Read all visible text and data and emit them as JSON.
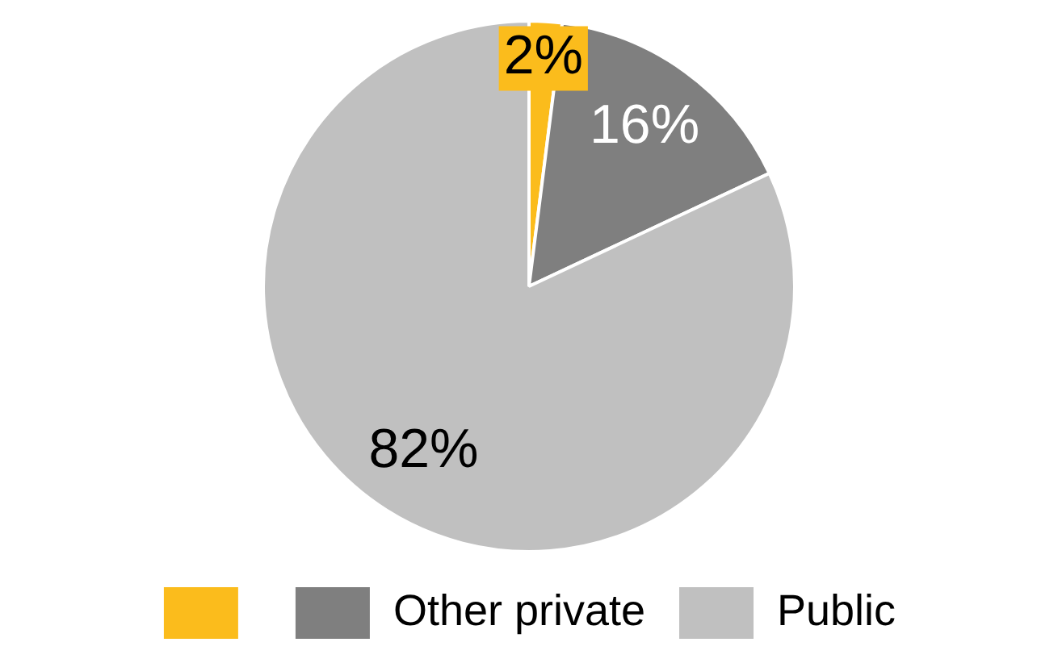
{
  "chart_data": {
    "type": "pie",
    "categories": [
      null,
      "Other private",
      "Public"
    ],
    "values": [
      2,
      16,
      82
    ],
    "colors": [
      "#fbbc1c",
      "#7f7f7f",
      "#c0c0c0"
    ],
    "value_labels": [
      "2%",
      "16%",
      "82%"
    ],
    "legend": "bottom"
  }
}
